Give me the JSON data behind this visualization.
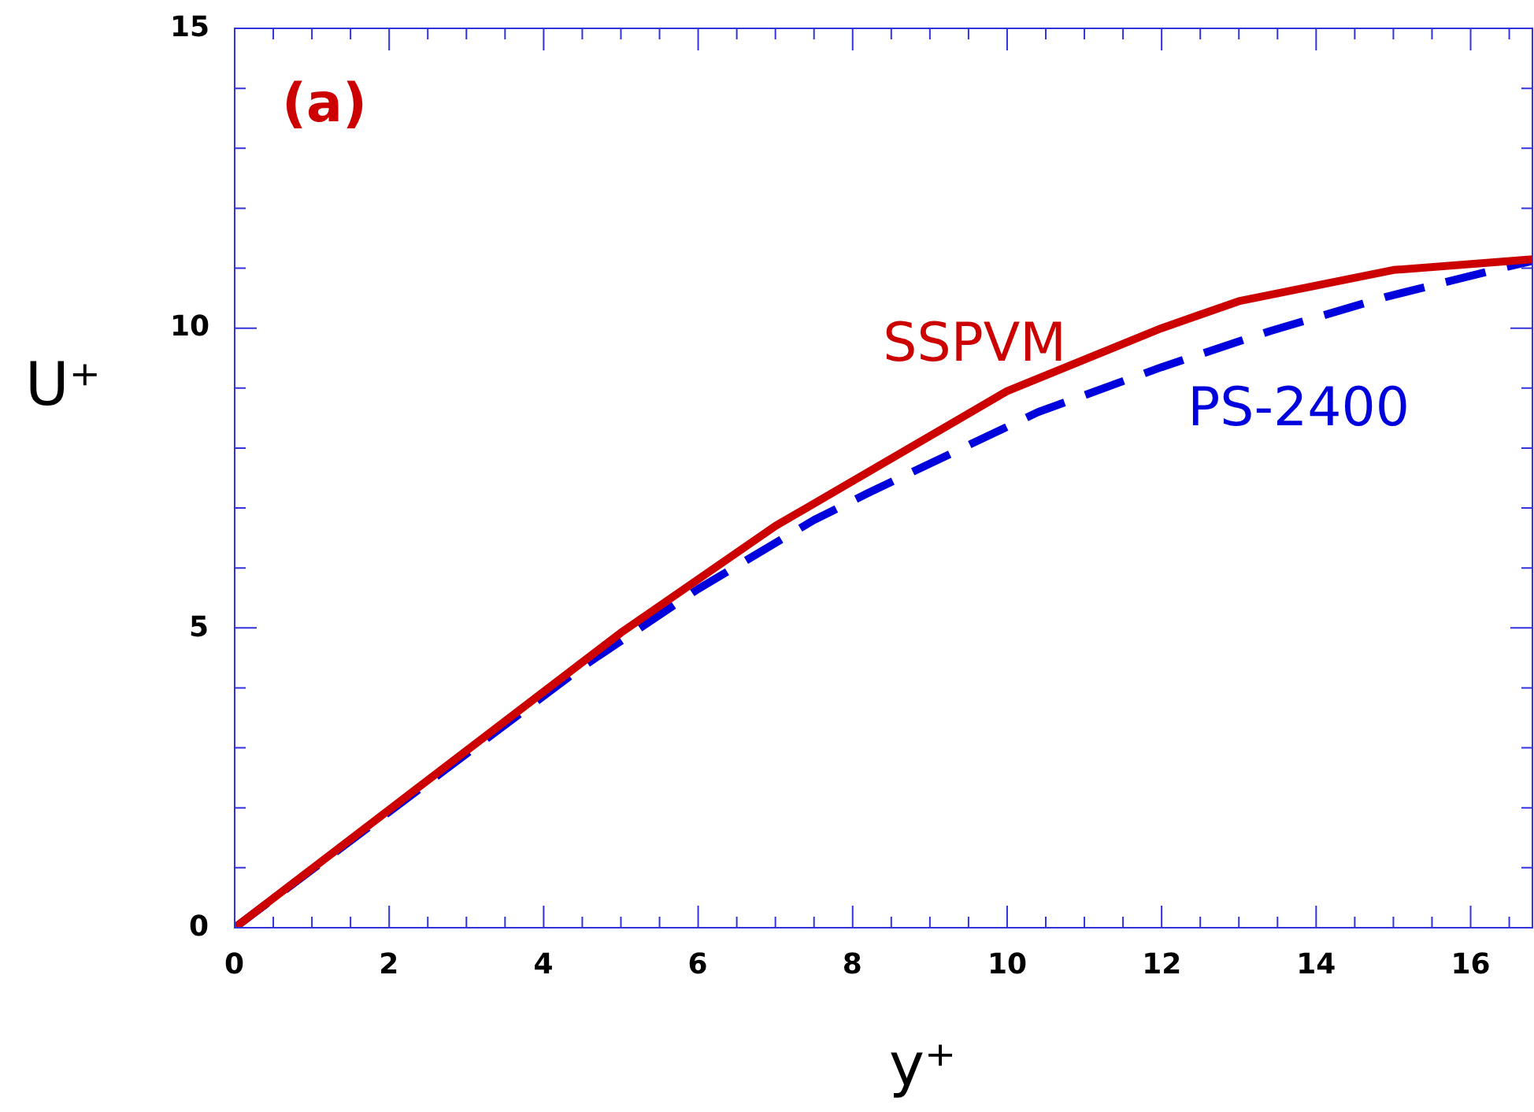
{
  "chart_data": {
    "type": "line",
    "xlabel": "y⁺",
    "ylabel": "U⁺",
    "annotations": [
      "(a)"
    ],
    "xlim": [
      0,
      16.8
    ],
    "ylim": [
      0,
      15
    ],
    "xticks": [
      0,
      {
        "value": 0.5,
        "label": null
      },
      {
        "value": 1,
        "label": null
      },
      {
        "value": 1.5,
        "label": null
      },
      2,
      {
        "value": 2.5,
        "label": null
      },
      {
        "value": 3,
        "label": null
      },
      {
        "value": 3.5,
        "label": null
      },
      4,
      {
        "value": 4.5,
        "label": null
      },
      {
        "value": 5,
        "label": null
      },
      {
        "value": 5.5,
        "label": null
      },
      6,
      {
        "value": 6.5,
        "label": null
      },
      {
        "value": 7,
        "label": null
      },
      {
        "value": 7.5,
        "label": null
      },
      8,
      {
        "value": 8.5,
        "label": null
      },
      {
        "value": 9,
        "label": null
      },
      {
        "value": 9.5,
        "label": null
      },
      10,
      {
        "value": 10.5,
        "label": null
      },
      {
        "value": 11,
        "label": null
      },
      {
        "value": 11.5,
        "label": null
      },
      12,
      {
        "value": 12.5,
        "label": null
      },
      {
        "value": 13,
        "label": null
      },
      {
        "value": 13.5,
        "label": null
      },
      14,
      {
        "value": 14.5,
        "label": null
      },
      {
        "value": 15,
        "label": null
      },
      {
        "value": 15.5,
        "label": null
      },
      16,
      {
        "value": 16.5,
        "label": null
      }
    ],
    "yticks": [
      0,
      {
        "value": 1,
        "label": null
      },
      {
        "value": 2,
        "label": null
      },
      {
        "value": 3,
        "label": null
      },
      {
        "value": 4,
        "label": null
      },
      5,
      {
        "value": 6,
        "label": null
      },
      {
        "value": 7,
        "label": null
      },
      {
        "value": 8,
        "label": null
      },
      {
        "value": 9,
        "label": null
      },
      10,
      {
        "value": 11,
        "label": null
      },
      {
        "value": 12,
        "label": null
      },
      {
        "value": 13,
        "label": null
      },
      {
        "value": 14,
        "label": null
      },
      15
    ],
    "grid": false,
    "legend": false,
    "marker": "none",
    "series": [
      {
        "name": "SSPVM",
        "color": "#cc0000",
        "line_style": "solid",
        "x": [
          0,
          5,
          7,
          10,
          12,
          13,
          15,
          16.8
        ],
        "values": [
          0,
          4.92,
          6.7,
          8.95,
          10.0,
          10.45,
          10.97,
          11.15
        ]
      },
      {
        "name": "PS-2400",
        "color": "#0000dd",
        "line_style": "dashed",
        "x": [
          0,
          4.5,
          6,
          7.5,
          8.2,
          10.4,
          12,
          13.4,
          14.9,
          16.4,
          16.8
        ],
        "values": [
          0,
          4.35,
          5.65,
          6.8,
          7.25,
          8.6,
          9.35,
          9.95,
          10.52,
          11.0,
          11.12
        ]
      }
    ]
  }
}
